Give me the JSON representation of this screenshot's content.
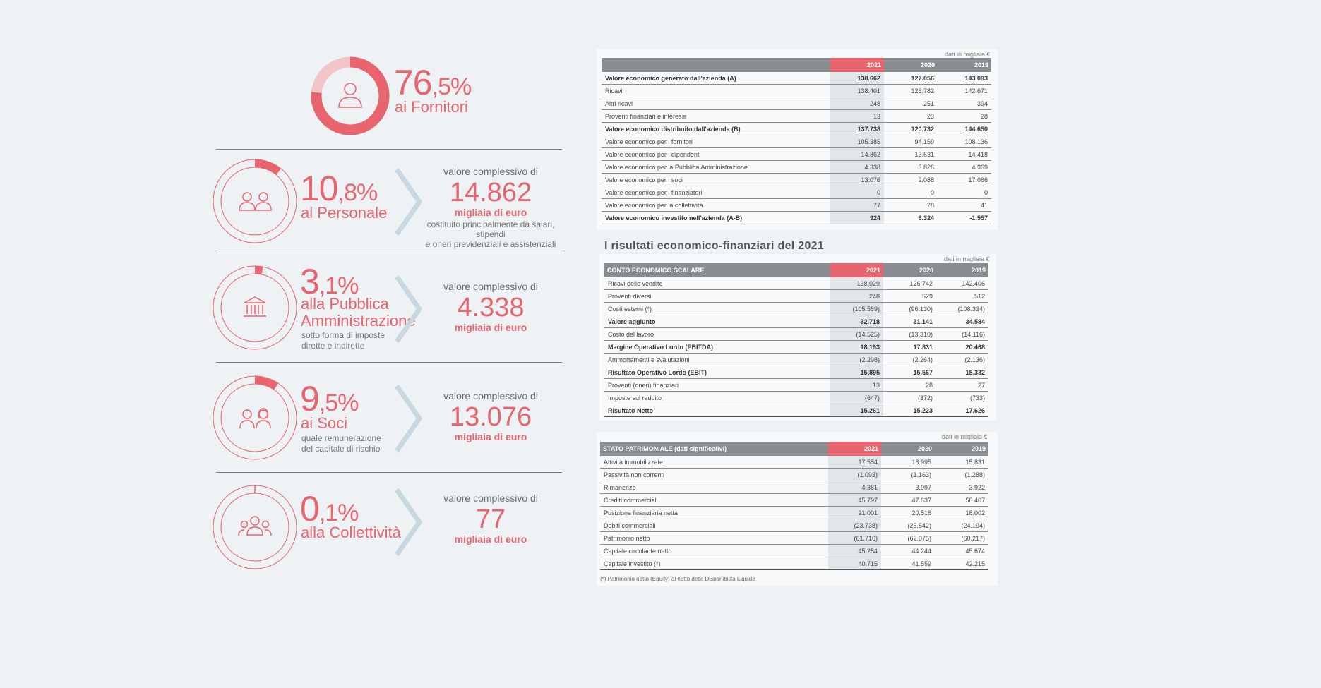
{
  "infographic": {
    "fornitori": {
      "int": "76",
      "dec": ",5%",
      "label": "ai Fornitori",
      "percent": 76.5
    },
    "personale": {
      "int": "10",
      "dec": ",8%",
      "label": "al Personale",
      "percent": 10.8,
      "vc_title": "valore complessivo di",
      "value": "14.862",
      "unit": "migliaia di euro",
      "note1": "costituito principalmente da salari, stipendi",
      "note2": "e oneri previdenziali e assistenziali"
    },
    "pa": {
      "int": "3",
      "dec": ",1%",
      "label1": "alla Pubblica",
      "label2": "Amministrazione",
      "sub1": "sotto forma di imposte",
      "sub2": "dirette e indirette",
      "percent": 3.1,
      "vc_title": "valore complessivo di",
      "value": "4.338",
      "unit": "migliaia di euro"
    },
    "soci": {
      "int": "9",
      "dec": ",5%",
      "label": "ai Soci",
      "sub1": "quale remunerazione",
      "sub2": "del capitale di rischio",
      "percent": 9.5,
      "vc_title": "valore complessivo di",
      "value": "13.076",
      "unit": "migliaia di euro"
    },
    "collettivita": {
      "int": "0",
      "dec": ",1%",
      "label": "alla Collettività",
      "percent": 0.1,
      "vc_title": "valore complessivo di",
      "value": "77",
      "unit": "migliaia di euro"
    },
    "icons": [
      "person-icon",
      "two-people-icon",
      "bank-building-icon",
      "couple-icon",
      "group-icon"
    ]
  },
  "table1": {
    "unit_note": "dati in migliaia €",
    "headers": [
      "",
      "2021",
      "2020",
      "2019"
    ],
    "rows": [
      {
        "label": "Valore economico generato dall'azienda (A)",
        "v": [
          "138.662",
          "127.056",
          "143.093"
        ],
        "bold": true
      },
      {
        "label": "Ricavi",
        "v": [
          "138.401",
          "126.782",
          "142.671"
        ]
      },
      {
        "label": "Altri ricavi",
        "v": [
          "248",
          "251",
          "394"
        ]
      },
      {
        "label": "Proventi finanziari e interessi",
        "v": [
          "13",
          "23",
          "28"
        ]
      },
      {
        "label": "Valore economico distribuito dall'azienda (B)",
        "v": [
          "137.738",
          "120.732",
          "144.650"
        ],
        "bold": true
      },
      {
        "label": "Valore economico per i fornitori",
        "v": [
          "105.385",
          "94.159",
          "108.136"
        ]
      },
      {
        "label": "Valore economico per i dipendenti",
        "v": [
          "14.862",
          "13.631",
          "14.418"
        ]
      },
      {
        "label": "Valore economico per la Pubblica Amministrazione",
        "v": [
          "4.338",
          "3.826",
          "4.969"
        ]
      },
      {
        "label": "Valore economico per i soci",
        "v": [
          "13.076",
          "9.088",
          "17.086"
        ]
      },
      {
        "label": "Valore economico per i finanziatori",
        "v": [
          "0",
          "0",
          "0"
        ]
      },
      {
        "label": "Valore economico per la collettività",
        "v": [
          "77",
          "28",
          "41"
        ]
      },
      {
        "label": "Valore economico investito nell'azienda (A-B)",
        "v": [
          "924",
          "6.324",
          "-1.557"
        ],
        "bold": true
      }
    ]
  },
  "section_title": "I risultati economico-finanziari del 2021",
  "table2": {
    "unit_note": "dati in migliaia €",
    "headers": [
      "CONTO ECONOMICO SCALARE",
      "2021",
      "2020",
      "2019"
    ],
    "rows": [
      {
        "label": "Ricavi delle vendite",
        "v": [
          "138.029",
          "126.742",
          "142.406"
        ]
      },
      {
        "label": "Proventi diversi",
        "v": [
          "248",
          "529",
          "512"
        ]
      },
      {
        "label": "Costi esterni (*)",
        "v": [
          "(105.559)",
          "(96.130)",
          "(108.334)"
        ]
      },
      {
        "label": "Valore aggiunto",
        "v": [
          "32.718",
          "31.141",
          "34.584"
        ],
        "bold": true
      },
      {
        "label": "Costo del lavoro",
        "v": [
          "(14.525)",
          "(13.310)",
          "(14.116)"
        ]
      },
      {
        "label": "Margine Operativo Lordo (EBITDA)",
        "v": [
          "18.193",
          "17.831",
          "20.468"
        ],
        "bold": true
      },
      {
        "label": "Ammortamenti e svalutazioni",
        "v": [
          "(2.298)",
          "(2.264)",
          "(2.136)"
        ]
      },
      {
        "label": "Risultato Operativo Lordo (EBIT)",
        "v": [
          "15.895",
          "15.567",
          "18.332"
        ],
        "bold": true
      },
      {
        "label": "Proventi (oneri) finanziari",
        "v": [
          "13",
          "28",
          "27"
        ]
      },
      {
        "label": "Imposte sul reddito",
        "v": [
          "(647)",
          "(372)",
          "(733)"
        ]
      },
      {
        "label": "Risultato Netto",
        "v": [
          "15.261",
          "15.223",
          "17.626"
        ],
        "bold": true
      }
    ]
  },
  "table3": {
    "unit_note": "dati in migliaia €",
    "headers": [
      "STATO PATRIMONIALE (dati significativi)",
      "2021",
      "2020",
      "2019"
    ],
    "rows": [
      {
        "label": "Attività immobilizzate",
        "v": [
          "17.554",
          "18.995",
          "15.831"
        ]
      },
      {
        "label": "Passività non correnti",
        "v": [
          "(1.093)",
          "(1.163)",
          "(1.288)"
        ]
      },
      {
        "label": "Rimanenze",
        "v": [
          "4.381",
          "3.997",
          "3.922"
        ]
      },
      {
        "label": "Crediti commerciali",
        "v": [
          "45.797",
          "47.637",
          "50.407"
        ]
      },
      {
        "label": "Posizione finanziaria netta",
        "v": [
          "21.001",
          "20.516",
          "18.002"
        ]
      },
      {
        "label": "Debiti commerciali",
        "v": [
          "(23.738)",
          "(25.542)",
          "(24.194)"
        ]
      },
      {
        "label": "Patrimonio netto",
        "v": [
          "(61.716)",
          "(62.075)",
          "(60.217)"
        ]
      },
      {
        "label": "Capitale circolante netto",
        "v": [
          "45.254",
          "44.244",
          "45.674"
        ]
      },
      {
        "label": "Capitale investito (*)",
        "v": [
          "40.715",
          "41.559",
          "42.215"
        ]
      }
    ],
    "footnote": "(*) Patrimonio netto (Equity) al netto delle Disponibilità Liquide"
  },
  "colors": {
    "accent": "#e8646e",
    "header_gray": "#8a8d90",
    "background": "#eef2f4"
  }
}
